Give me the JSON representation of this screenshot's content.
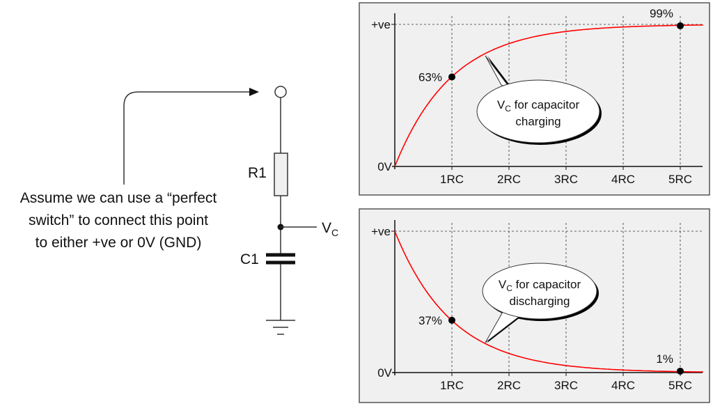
{
  "circuit": {
    "note_lines": [
      "Assume we can use a “perfect",
      "switch” to connect this point",
      "to either +ve or 0V (GND)"
    ],
    "resistor_label": "R1",
    "capacitor_label": "C1",
    "node_label_main": "V",
    "node_label_sub": "C"
  },
  "chart_data": [
    {
      "type": "line",
      "xlabel": "",
      "ylabel": "",
      "x_tick_labels": [
        "1RC",
        "2RC",
        "3RC",
        "4RC",
        "5RC"
      ],
      "y_tick_labels": [
        "0V",
        "+ve"
      ],
      "grid": true,
      "line_color": "#ff0000",
      "x": [
        0,
        0.5,
        1,
        1.5,
        2,
        2.5,
        3,
        3.5,
        4,
        4.5,
        5,
        5.4
      ],
      "y_percent": [
        0,
        39,
        63,
        78,
        86,
        92,
        95,
        97,
        98,
        99,
        99,
        100
      ],
      "markers": [
        {
          "x": 1,
          "label": "63%",
          "y_percent": 63
        },
        {
          "x": 5,
          "label": "99%",
          "y_percent": 99
        }
      ],
      "callout_main": "V",
      "callout_sub": "C",
      "callout_rest": " for capacitor",
      "callout_line2": "charging"
    },
    {
      "type": "line",
      "xlabel": "",
      "ylabel": "",
      "x_tick_labels": [
        "1RC",
        "2RC",
        "3RC",
        "4RC",
        "5RC"
      ],
      "y_tick_labels": [
        "0V",
        "+ve"
      ],
      "grid": true,
      "line_color": "#ff0000",
      "x": [
        0,
        0.5,
        1,
        1.5,
        2,
        2.5,
        3,
        3.5,
        4,
        4.5,
        5,
        5.4
      ],
      "y_percent": [
        100,
        61,
        37,
        22,
        14,
        8,
        5,
        3,
        2,
        1,
        1,
        0
      ],
      "markers": [
        {
          "x": 1,
          "label": "37%",
          "y_percent": 37
        },
        {
          "x": 5,
          "label": "1%",
          "y_percent": 1
        }
      ],
      "callout_main": "V",
      "callout_sub": "C",
      "callout_rest": " for capacitor",
      "callout_line2": "discharging"
    }
  ]
}
